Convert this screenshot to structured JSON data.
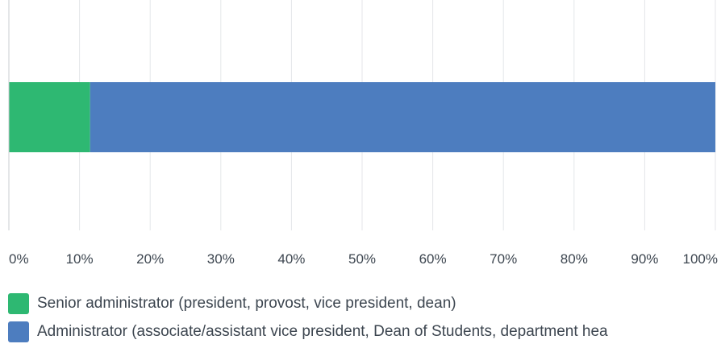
{
  "chart_data": {
    "type": "bar",
    "orientation": "horizontal",
    "stacked": true,
    "categories": [
      ""
    ],
    "series": [
      {
        "name": "Senior administrator (president, provost, vice president, dean)",
        "values": [
          11.5
        ],
        "color": "#2eb872"
      },
      {
        "name": "Administrator (associate/assistant vice president, Dean of Students, department hea",
        "values": [
          88.5
        ],
        "color": "#4d7dbf"
      }
    ],
    "xlim": [
      0,
      100
    ],
    "x_ticks": [
      0,
      10,
      20,
      30,
      40,
      50,
      60,
      70,
      80,
      90,
      100
    ],
    "x_tick_labels": [
      "0%",
      "10%",
      "20%",
      "30%",
      "40%",
      "50%",
      "60%",
      "70%",
      "80%",
      "90%",
      "100%"
    ],
    "grid": true,
    "legend_position": "bottom-left"
  }
}
